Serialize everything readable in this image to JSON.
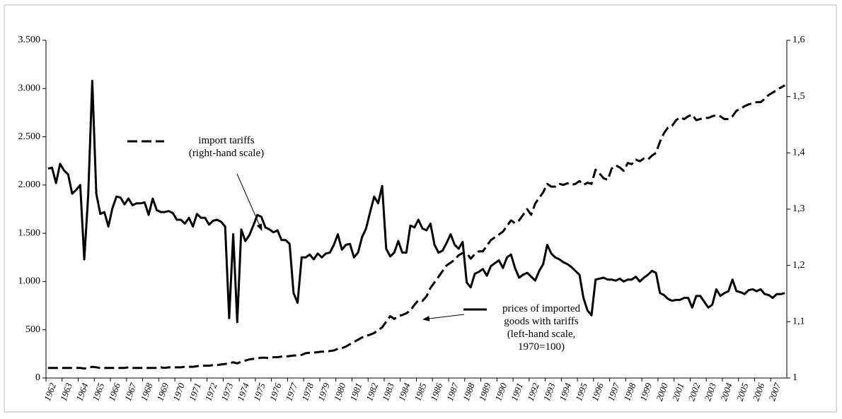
{
  "chart_data": {
    "type": "line",
    "categories": [
      "1962",
      null,
      null,
      null,
      "1963",
      null,
      null,
      null,
      "1964",
      null,
      null,
      null,
      "1965",
      null,
      null,
      null,
      "1966",
      null,
      null,
      null,
      "1967",
      null,
      null,
      null,
      "1968",
      null,
      null,
      null,
      "1969",
      null,
      null,
      null,
      "1970",
      null,
      null,
      null,
      "1971",
      null,
      null,
      null,
      "1972",
      null,
      null,
      null,
      "1973",
      null,
      null,
      null,
      "1974",
      null,
      null,
      null,
      "1975",
      null,
      null,
      null,
      "1976",
      null,
      null,
      null,
      "1977",
      null,
      null,
      null,
      "1978",
      null,
      null,
      null,
      "1979",
      null,
      null,
      null,
      "1980",
      null,
      null,
      null,
      "1981",
      null,
      null,
      null,
      "1982",
      null,
      null,
      null,
      "1983",
      null,
      null,
      null,
      "1984",
      null,
      null,
      null,
      "1985",
      null,
      null,
      null,
      "1986",
      null,
      null,
      null,
      "1987",
      null,
      null,
      null,
      "1988",
      null,
      null,
      null,
      "1989",
      null,
      null,
      null,
      "1990",
      null,
      null,
      null,
      "1991",
      null,
      null,
      null,
      "1992",
      null,
      null,
      null,
      "1993",
      null,
      null,
      null,
      "1994",
      null,
      null,
      null,
      "1995",
      null,
      null,
      null,
      "1996",
      null,
      null,
      null,
      "1997",
      null,
      null,
      null,
      "1998",
      null,
      null,
      null,
      "1999",
      null,
      null,
      null,
      "2000",
      null,
      null,
      null,
      "2001",
      null,
      null,
      null,
      "2002",
      null,
      null,
      null,
      "2003",
      null,
      null,
      null,
      "2004",
      null,
      null,
      null,
      "2005",
      null,
      null,
      null,
      "2006",
      null,
      null,
      null,
      "2007",
      null,
      null,
      null
    ],
    "series": [
      {
        "name": "import tariffs\n(right-hand scale)",
        "color": "#000000",
        "line_style": "dashed",
        "axis": "y2",
        "values": [
          1.018,
          1.018,
          1.018,
          1.018,
          1.018,
          1.018,
          1.018,
          1.018,
          1.018,
          1.017,
          1.018,
          1.02,
          1.019,
          1.018,
          1.018,
          1.018,
          1.018,
          1.018,
          1.018,
          1.018,
          1.019,
          1.018,
          1.018,
          1.018,
          1.018,
          1.018,
          1.018,
          1.018,
          1.019,
          1.018,
          1.019,
          1.019,
          1.019,
          1.019,
          1.02,
          1.02,
          1.02,
          1.021,
          1.022,
          1.022,
          1.022,
          1.023,
          1.023,
          1.024,
          1.025,
          1.026,
          1.028,
          1.026,
          1.029,
          1.031,
          1.033,
          1.034,
          1.035,
          1.036,
          1.036,
          1.035,
          1.037,
          1.037,
          1.038,
          1.038,
          1.039,
          1.04,
          1.04,
          1.041,
          1.044,
          1.045,
          1.045,
          1.046,
          1.047,
          1.047,
          1.048,
          1.049,
          1.052,
          1.053,
          1.056,
          1.06,
          1.064,
          1.068,
          1.072,
          1.075,
          1.077,
          1.08,
          1.085,
          1.09,
          1.1,
          1.11,
          1.105,
          1.11,
          1.112,
          1.115,
          1.12,
          1.13,
          1.138,
          1.137,
          1.145,
          1.16,
          1.17,
          1.18,
          1.19,
          1.2,
          1.205,
          1.21,
          1.218,
          1.222,
          1.222,
          1.212,
          1.22,
          1.225,
          1.225,
          1.235,
          1.245,
          1.25,
          1.255,
          1.26,
          1.27,
          1.28,
          1.275,
          1.28,
          1.29,
          1.3,
          1.29,
          1.31,
          1.32,
          1.33,
          1.345,
          1.34,
          1.34,
          1.345,
          1.343,
          1.346,
          1.343,
          1.345,
          1.35,
          1.343,
          1.347,
          1.345,
          1.37,
          1.363,
          1.355,
          1.352,
          1.372,
          1.378,
          1.374,
          1.368,
          1.382,
          1.38,
          1.388,
          1.385,
          1.39,
          1.388,
          1.395,
          1.4,
          1.42,
          1.435,
          1.445,
          1.448,
          1.458,
          1.463,
          1.46,
          1.465,
          1.468,
          1.458,
          1.46,
          1.462,
          1.462,
          1.465,
          1.467,
          1.465,
          1.46,
          1.46,
          1.465,
          1.475,
          1.478,
          1.483,
          1.486,
          1.488,
          1.49,
          1.49,
          1.496,
          1.503,
          1.507,
          1.512,
          1.516,
          1.52
        ]
      },
      {
        "name": "prices of imported\ngoods with tariffs\n(left-hand scale,\n1970=100)",
        "color": "#000000",
        "line_style": "solid",
        "values": [
          2170,
          2180,
          2020,
          2220,
          2150,
          2110,
          1910,
          1950,
          2000,
          1230,
          1900,
          3080,
          1910,
          1700,
          1720,
          1570,
          1760,
          1880,
          1870,
          1800,
          1860,
          1790,
          1810,
          1810,
          1820,
          1690,
          1860,
          1740,
          1720,
          1720,
          1730,
          1710,
          1640,
          1640,
          1600,
          1660,
          1570,
          1700,
          1660,
          1660,
          1590,
          1630,
          1640,
          1620,
          1570,
          620,
          1490,
          580,
          1540,
          1420,
          1480,
          1580,
          1690,
          1670,
          1560,
          1540,
          1510,
          1530,
          1430,
          1430,
          1390,
          880,
          780,
          1250,
          1250,
          1280,
          1230,
          1290,
          1250,
          1290,
          1300,
          1380,
          1490,
          1330,
          1380,
          1390,
          1250,
          1300,
          1460,
          1550,
          1720,
          1880,
          1810,
          1990,
          1340,
          1260,
          1300,
          1420,
          1300,
          1300,
          1580,
          1560,
          1640,
          1550,
          1530,
          1600,
          1380,
          1300,
          1320,
          1400,
          1490,
          1380,
          1340,
          1410,
          990,
          940,
          1080,
          1100,
          1130,
          1060,
          1160,
          1190,
          1220,
          1140,
          1250,
          1280,
          1140,
          1040,
          1070,
          1090,
          1050,
          1010,
          1110,
          1180,
          1380,
          1290,
          1250,
          1230,
          1200,
          1180,
          1150,
          1110,
          1070,
          830,
          700,
          650,
          1020,
          1030,
          1040,
          1020,
          1020,
          1010,
          1030,
          1000,
          1020,
          1020,
          1050,
          1000,
          1040,
          1070,
          1110,
          1090,
          880,
          860,
          820,
          800,
          810,
          810,
          830,
          830,
          730,
          850,
          850,
          790,
          730,
          760,
          920,
          850,
          880,
          900,
          1020,
          900,
          890,
          870,
          910,
          920,
          900,
          920,
          870,
          860,
          830,
          870,
          870,
          880
        ]
      }
    ],
    "ylim": [
      0,
      3500
    ],
    "yticks": [
      0,
      500,
      {
        "value": 1000,
        "label": "1.000"
      },
      {
        "value": 1500,
        "label": "1.500"
      },
      {
        "value": 2000,
        "label": "2.000"
      },
      {
        "value": 2500,
        "label": "2.500"
      },
      {
        "value": 3000,
        "label": "3.000"
      },
      {
        "value": 3500,
        "label": "3.500"
      }
    ],
    "y2lim": [
      1,
      1.6
    ],
    "y2ticks": [
      1,
      {
        "value": 1.1,
        "label": "1,1"
      },
      {
        "value": 1.2,
        "label": "1,2"
      },
      {
        "value": 1.3,
        "label": "1,3"
      },
      {
        "value": 1.4,
        "label": "1,4"
      },
      {
        "value": 1.5,
        "label": "1,5"
      },
      {
        "value": 1.6,
        "label": "1,6"
      }
    ],
    "grid": false
  }
}
